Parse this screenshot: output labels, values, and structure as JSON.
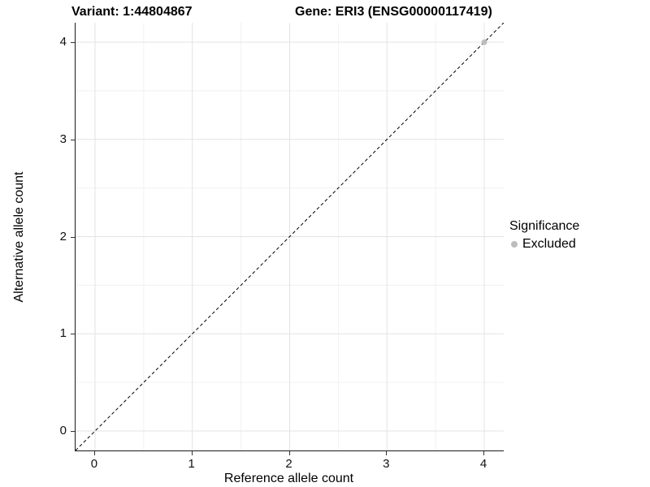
{
  "chart_data": {
    "type": "scatter",
    "titles": {
      "variant": "Variant: 1:44804867",
      "gene": "Gene: ERI3 (ENSG00000117419)"
    },
    "xlabel": "Reference allele count",
    "ylabel": "Alternative allele count",
    "xlim": [
      -0.2,
      4.2
    ],
    "ylim": [
      -0.2,
      4.2
    ],
    "x_ticks": [
      0,
      1,
      2,
      3,
      4
    ],
    "y_ticks": [
      0,
      1,
      2,
      3,
      4
    ],
    "minor_gridlines": [
      0.5,
      1.5,
      2.5,
      3.5
    ],
    "grid": {
      "show": true,
      "major_color": "#e3e3e3",
      "minor_color": "#f1f1f1"
    },
    "reference_line": {
      "kind": "identity y=x",
      "color": "#000000",
      "style": "dashed",
      "dash": "4 3"
    },
    "series": [
      {
        "name": "Excluded",
        "color": "#bdbdbd",
        "radius": 3.5,
        "points": [
          [
            4,
            4
          ]
        ]
      }
    ],
    "legend": {
      "title": "Significance",
      "position": "right",
      "items": [
        {
          "label": "Excluded",
          "color": "#bdbdbd"
        }
      ]
    },
    "axis": {
      "line_color": "#1a1a1a",
      "tick_color": "#333333"
    }
  }
}
